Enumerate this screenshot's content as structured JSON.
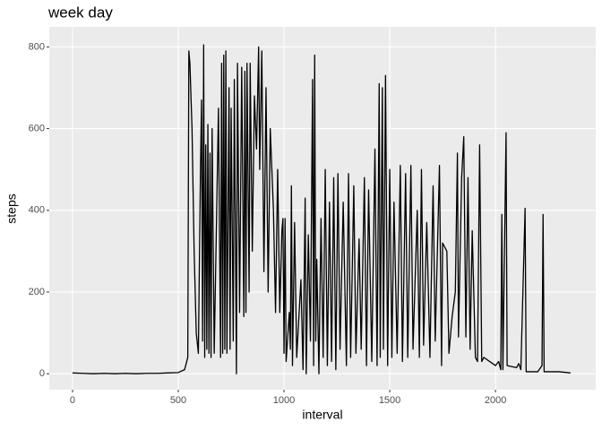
{
  "chart_data": {
    "type": "line",
    "title": "week day",
    "x_label": "interval",
    "y_label": "steps",
    "x": [
      0,
      50,
      100,
      150,
      200,
      250,
      300,
      350,
      400,
      450,
      500,
      530,
      545,
      550,
      555,
      565,
      575,
      585,
      595,
      605,
      610,
      615,
      620,
      625,
      630,
      635,
      640,
      645,
      650,
      655,
      660,
      670,
      690,
      700,
      705,
      710,
      715,
      720,
      725,
      730,
      740,
      745,
      750,
      760,
      765,
      775,
      780,
      790,
      800,
      810,
      815,
      820,
      825,
      835,
      840,
      850,
      860,
      870,
      880,
      885,
      895,
      905,
      915,
      925,
      935,
      950,
      960,
      970,
      980,
      990,
      995,
      1000,
      1005,
      1010,
      1025,
      1030,
      1035,
      1040,
      1050,
      1060,
      1080,
      1090,
      1100,
      1105,
      1115,
      1125,
      1135,
      1140,
      1145,
      1150,
      1155,
      1165,
      1175,
      1185,
      1195,
      1205,
      1215,
      1225,
      1235,
      1245,
      1255,
      1265,
      1280,
      1295,
      1305,
      1315,
      1330,
      1340,
      1355,
      1365,
      1380,
      1390,
      1400,
      1415,
      1430,
      1440,
      1450,
      1455,
      1465,
      1470,
      1480,
      1490,
      1500,
      1510,
      1520,
      1535,
      1550,
      1560,
      1575,
      1585,
      1600,
      1610,
      1630,
      1640,
      1650,
      1660,
      1675,
      1690,
      1705,
      1715,
      1735,
      1745,
      1750,
      1770,
      1780,
      1795,
      1810,
      1820,
      1825,
      1840,
      1850,
      1860,
      1870,
      1880,
      1890,
      1905,
      1915,
      1925,
      1935,
      1945,
      2000,
      2015,
      2025,
      2030,
      2035,
      2050,
      2055,
      2100,
      2110,
      2120,
      2140,
      2145,
      2200,
      2220,
      2225,
      2230,
      2300,
      2355
    ],
    "series": [
      {
        "name": "steps",
        "color": "#000000",
        "values": [
          2,
          1,
          0,
          1,
          0,
          1,
          0,
          1,
          1,
          2,
          3,
          10,
          40,
          790,
          760,
          600,
          300,
          100,
          50,
          500,
          670,
          80,
          805,
          40,
          560,
          60,
          610,
          50,
          540,
          40,
          600,
          50,
          650,
          40,
          760,
          50,
          780,
          60,
          790,
          50,
          700,
          60,
          650,
          80,
          720,
          0,
          760,
          150,
          750,
          140,
          740,
          150,
          760,
          200,
          760,
          300,
          680,
          550,
          800,
          500,
          790,
          250,
          700,
          200,
          600,
          400,
          150,
          500,
          150,
          350,
          380,
          50,
          380,
          30,
          150,
          60,
          460,
          20,
          370,
          40,
          230,
          10,
          430,
          0,
          340,
          80,
          720,
          20,
          780,
          80,
          280,
          0,
          380,
          40,
          500,
          20,
          420,
          30,
          480,
          10,
          490,
          60,
          420,
          20,
          490,
          40,
          460,
          50,
          330,
          60,
          480,
          20,
          450,
          30,
          550,
          20,
          710,
          40,
          700,
          60,
          730,
          20,
          500,
          40,
          420,
          50,
          510,
          30,
          490,
          40,
          510,
          60,
          400,
          40,
          500,
          70,
          370,
          40,
          460,
          80,
          510,
          20,
          320,
          300,
          50,
          140,
          200,
          540,
          90,
          480,
          580,
          90,
          480,
          60,
          350,
          40,
          30,
          560,
          30,
          40,
          20,
          30,
          10,
          390,
          10,
          590,
          20,
          15,
          25,
          10,
          405,
          5,
          5,
          20,
          390,
          5,
          5,
          2
        ]
      }
    ],
    "xlim": [
      -110,
      2474
    ],
    "ylim": [
      -39,
      849
    ],
    "xticks": [
      0,
      500,
      1000,
      1500,
      2000
    ],
    "yticks": [
      0,
      200,
      400,
      600,
      800
    ],
    "grid": true
  }
}
